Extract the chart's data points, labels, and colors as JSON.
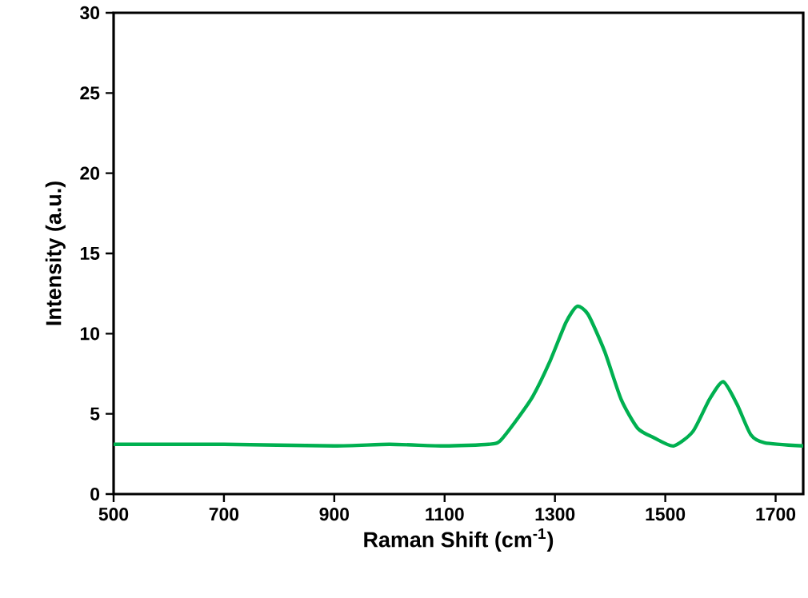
{
  "chart_data": {
    "type": "line",
    "xlabel": "Raman Shift (cm$^{-1}$)",
    "ylabel": "Intensity (a.u.)",
    "xlim": [
      500,
      1750
    ],
    "xticks": [
      500,
      700,
      900,
      1100,
      1300,
      1500,
      1700
    ],
    "ylim": [
      0,
      30
    ],
    "yticks": [
      0,
      5,
      10,
      15,
      20,
      25,
      30
    ],
    "marker": "none",
    "line_style": "solid",
    "series": [
      {
        "color": "#00b050",
        "x": [
          500,
          700,
          900,
          1000,
          1100,
          1180,
          1200,
          1230,
          1260,
          1290,
          1320,
          1340,
          1360,
          1390,
          1420,
          1450,
          1480,
          1515,
          1550,
          1580,
          1605,
          1630,
          1655,
          1680,
          1750
        ],
        "values": [
          3.1,
          3.1,
          3.0,
          3.1,
          3.0,
          3.1,
          3.3,
          4.6,
          6.1,
          8.2,
          10.7,
          11.7,
          11.2,
          8.9,
          5.9,
          4.1,
          3.5,
          3.0,
          3.9,
          5.9,
          7.0,
          5.6,
          3.7,
          3.2,
          3.0
        ]
      }
    ]
  }
}
